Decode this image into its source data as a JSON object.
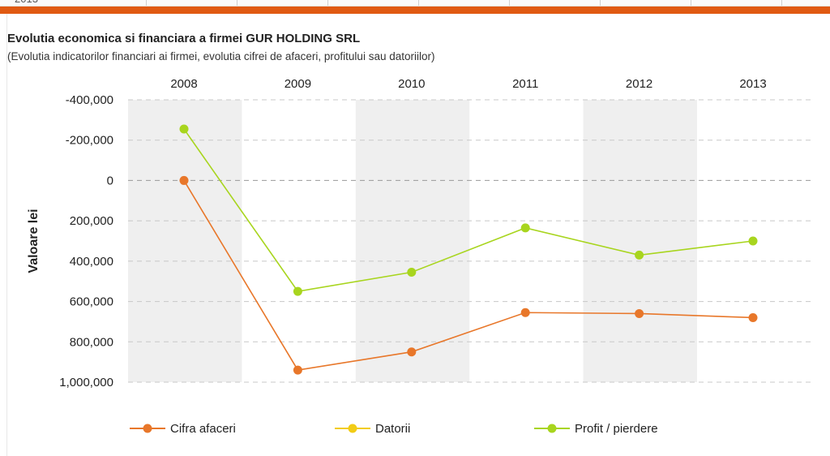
{
  "top_strip": {
    "previous_row_text": "2013"
  },
  "chart_data": {
    "type": "line",
    "title": "Evolutia economica si financiara a firmei GUR HOLDING SRL",
    "subtitle": "(Evolutia indicatorilor financiari ai firmei, evolutia cifrei de afaceri, profitului sau datoriilor)",
    "xlabel": "",
    "ylabel": "Valoare lei",
    "categories": [
      "2008",
      "2009",
      "2010",
      "2011",
      "2012",
      "2013"
    ],
    "y_ticks": [
      {
        "value": -400000,
        "label": "-400,000"
      },
      {
        "value": -200000,
        "label": "-200,000"
      },
      {
        "value": 0,
        "label": "0"
      },
      {
        "value": 200000,
        "label": "200,000"
      },
      {
        "value": 400000,
        "label": "400,000"
      },
      {
        "value": 600000,
        "label": "600,000"
      },
      {
        "value": 800000,
        "label": "800,000"
      },
      {
        "value": 1000000,
        "label": "1,000,000"
      }
    ],
    "ylim": [
      -400000,
      1000000
    ],
    "y_axis_inverted": true,
    "x_axis_position": "top",
    "grid": true,
    "legend_position": "bottom",
    "alternating_band_color": "#efefef",
    "series": [
      {
        "name": "Cifra afaceri",
        "color": "#e8772a",
        "values": [
          0,
          940000,
          850000,
          655000,
          660000,
          680000
        ]
      },
      {
        "name": "Datorii",
        "color": "#f2cc16",
        "values": [
          null,
          null,
          null,
          null,
          null,
          null
        ]
      },
      {
        "name": "Profit / pierdere",
        "color": "#a8d51e",
        "values": [
          -255000,
          550000,
          455000,
          235000,
          370000,
          300000
        ]
      }
    ]
  }
}
